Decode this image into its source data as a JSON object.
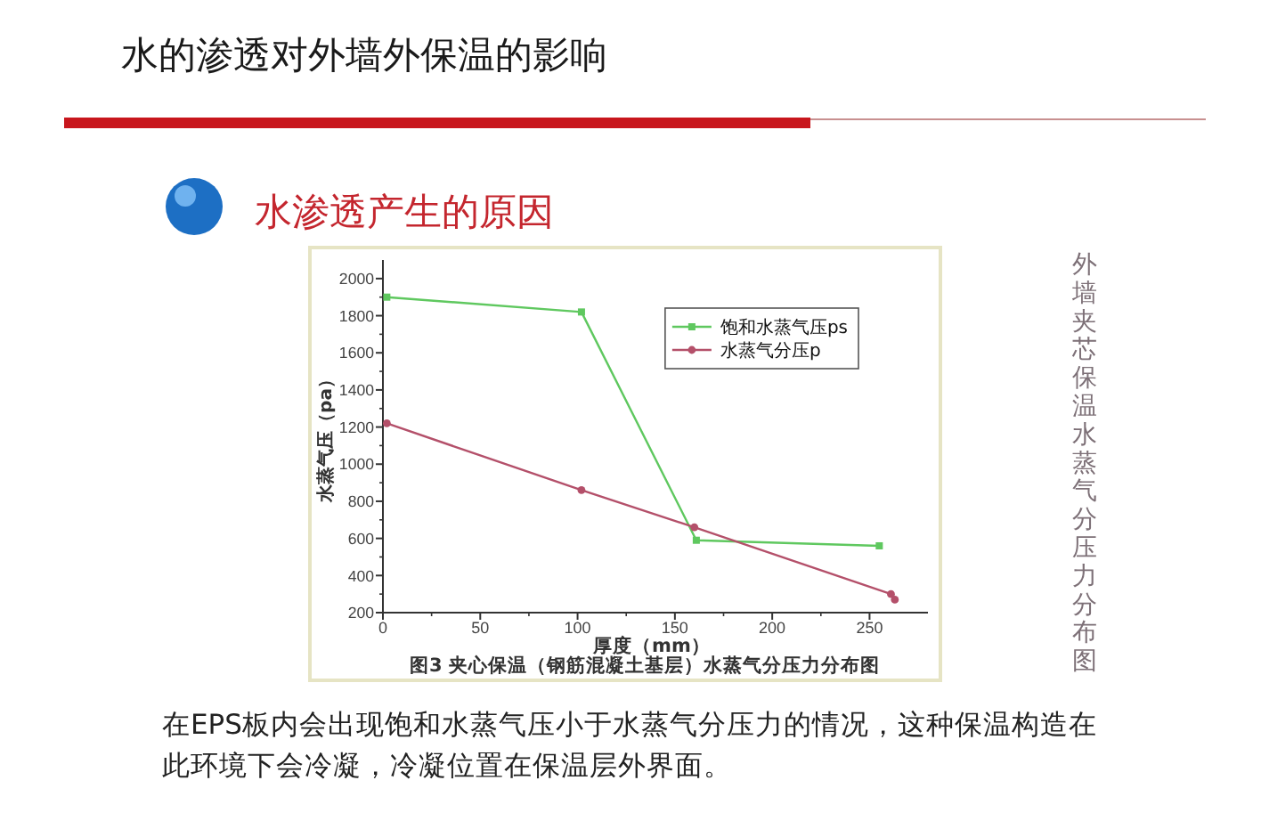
{
  "chart_data": {
    "type": "line",
    "title": "水的渗透对外墙外保温的影响",
    "subtitle": "水渗透产生的原因",
    "xlabel": "厚度（mm）",
    "ylabel": "水蒸气压（pa）",
    "annotations": [
      "外墙夹芯保温水蒸气分压力分布图",
      "图3 夹心保温（钢筋混凝土基层）水蒸气分压力分布图",
      "在EPS板内会出现饱和水蒸气压小于水蒸气分压力的情况，这种保温构造在此环境下会冷凝，冷凝位置在保温层外界面。"
    ],
    "series": [
      {
        "name": "饱和水蒸气压ps",
        "color": "#5fc85f",
        "x": [
          2,
          102,
          161,
          255
        ],
        "values": [
          1900,
          1820,
          590,
          560
        ]
      },
      {
        "name": "水蒸气分压p",
        "color": "#b4506a",
        "marker": "circle",
        "x": [
          2,
          102,
          160,
          261,
          263
        ],
        "values": [
          1220,
          860,
          660,
          300,
          270
        ]
      }
    ],
    "xlim": [
      0,
      280
    ],
    "ylim": [
      200,
      2100
    ],
    "xticks": [
      0,
      50,
      100,
      150,
      200,
      250
    ],
    "yticks": [
      200,
      400,
      600,
      800,
      1000,
      1200,
      1400,
      1600,
      1800,
      2000
    ],
    "legend": "top right",
    "marker": "square",
    "line_style": "solid"
  }
}
